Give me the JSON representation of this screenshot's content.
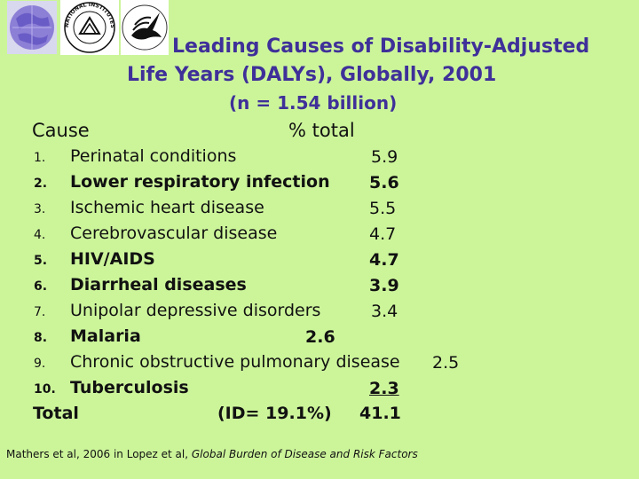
{
  "title": {
    "line1": "Leading Causes of Disability-Adjusted",
    "line2": "Life Years (DALYs), Globally, 2001",
    "subtitle": "(n = 1.54 billion)"
  },
  "headers": {
    "cause": "Cause",
    "percent": "% total"
  },
  "rows": [
    {
      "rank": "1.",
      "cause": "Perinatal conditions",
      "value": "5.9"
    },
    {
      "rank": "2.",
      "cause": "Lower respiratory infection",
      "value": "5.6"
    },
    {
      "rank": "3.",
      "cause": "Ischemic heart disease",
      "value": "5.5"
    },
    {
      "rank": "4.",
      "cause": "Cerebrovascular disease",
      "value": "4.7"
    },
    {
      "rank": "5.",
      "cause": "HIV/AIDS",
      "value": "4.7"
    },
    {
      "rank": "6.",
      "cause": "Diarrheal diseases",
      "value": "3.9"
    },
    {
      "rank": "7.",
      "cause": "Unipolar depressive disorders",
      "value": "3.4"
    },
    {
      "rank": "8.",
      "cause": "Malaria",
      "value": "2.6"
    },
    {
      "rank": "9.",
      "cause": "Chronic obstructive pulmonary disease",
      "value": "2.5"
    },
    {
      "rank": "10.",
      "cause": "Tuberculosis",
      "value": "2.3"
    }
  ],
  "total": {
    "label": "Total",
    "id": "(ID= 19.1%)",
    "value": "41.1"
  },
  "citation": {
    "prefix": "Mathers et al, 2006 in Lopez et al, ",
    "source": "Global Burden of Disease and Risk Factors"
  },
  "logos": {
    "globe": "globe-logo",
    "nih_seal_text": "NATIONAL INSTITUTES OF HEALTH",
    "hhs": "hhs-eagle-logo"
  },
  "colors": {
    "background": "#ccf59a",
    "title": "#3f3099"
  }
}
